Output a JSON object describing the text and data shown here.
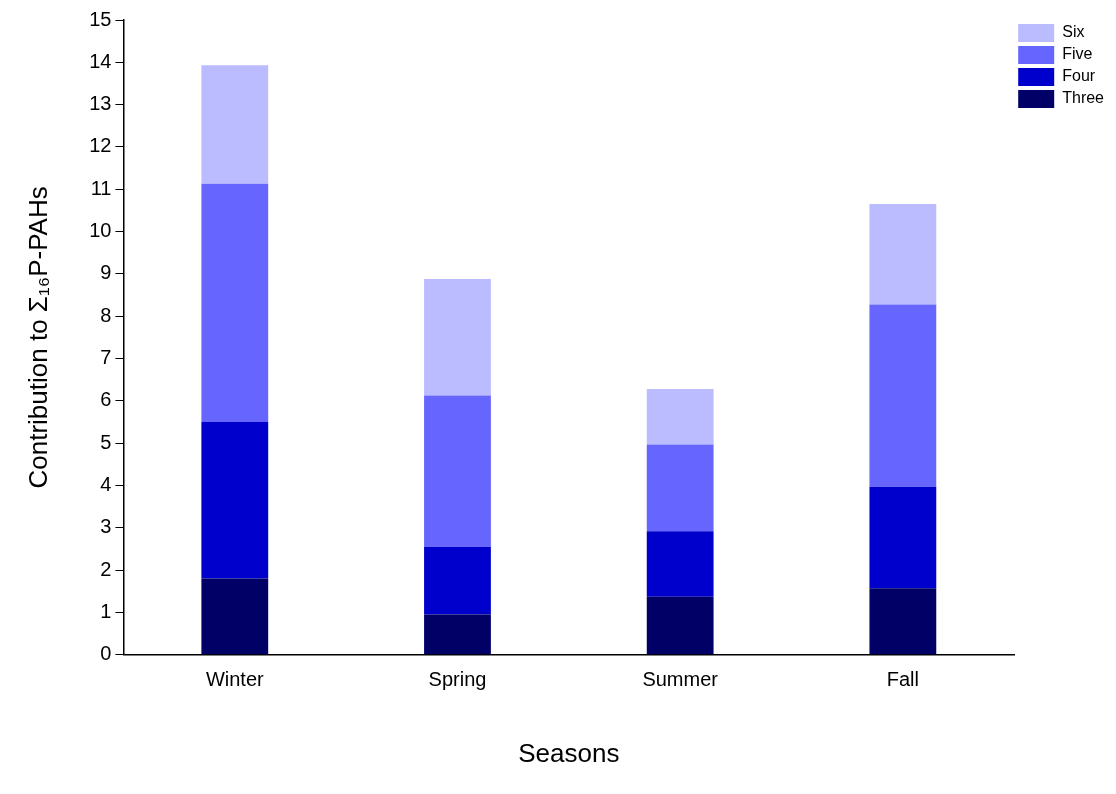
{
  "chart_data": {
    "type": "bar",
    "stacked": true,
    "categories": [
      "Winter",
      "Spring",
      "Summer",
      "Fall"
    ],
    "xlabel": "Seasons",
    "ylabel": "Contribution to Σ₁₆P-PAHs",
    "ylim": [
      0,
      15
    ],
    "yticks": [
      0,
      1,
      2,
      3,
      4,
      5,
      6,
      7,
      8,
      9,
      10,
      11,
      12,
      13,
      14,
      15
    ],
    "grid": false,
    "legend": "top right",
    "series": [
      {
        "name": "Three",
        "color": "#000066",
        "values": [
          1.8,
          0.95,
          1.37,
          1.57
        ]
      },
      {
        "name": "Four",
        "color": "#0000cc",
        "values": [
          3.7,
          1.6,
          1.55,
          2.4
        ]
      },
      {
        "name": "Five",
        "color": "#6666ff",
        "values": [
          5.63,
          3.58,
          2.05,
          4.31
        ]
      },
      {
        "name": "Six",
        "color": "#bbbbff",
        "values": [
          2.8,
          2.75,
          1.31,
          2.37
        ]
      }
    ]
  }
}
